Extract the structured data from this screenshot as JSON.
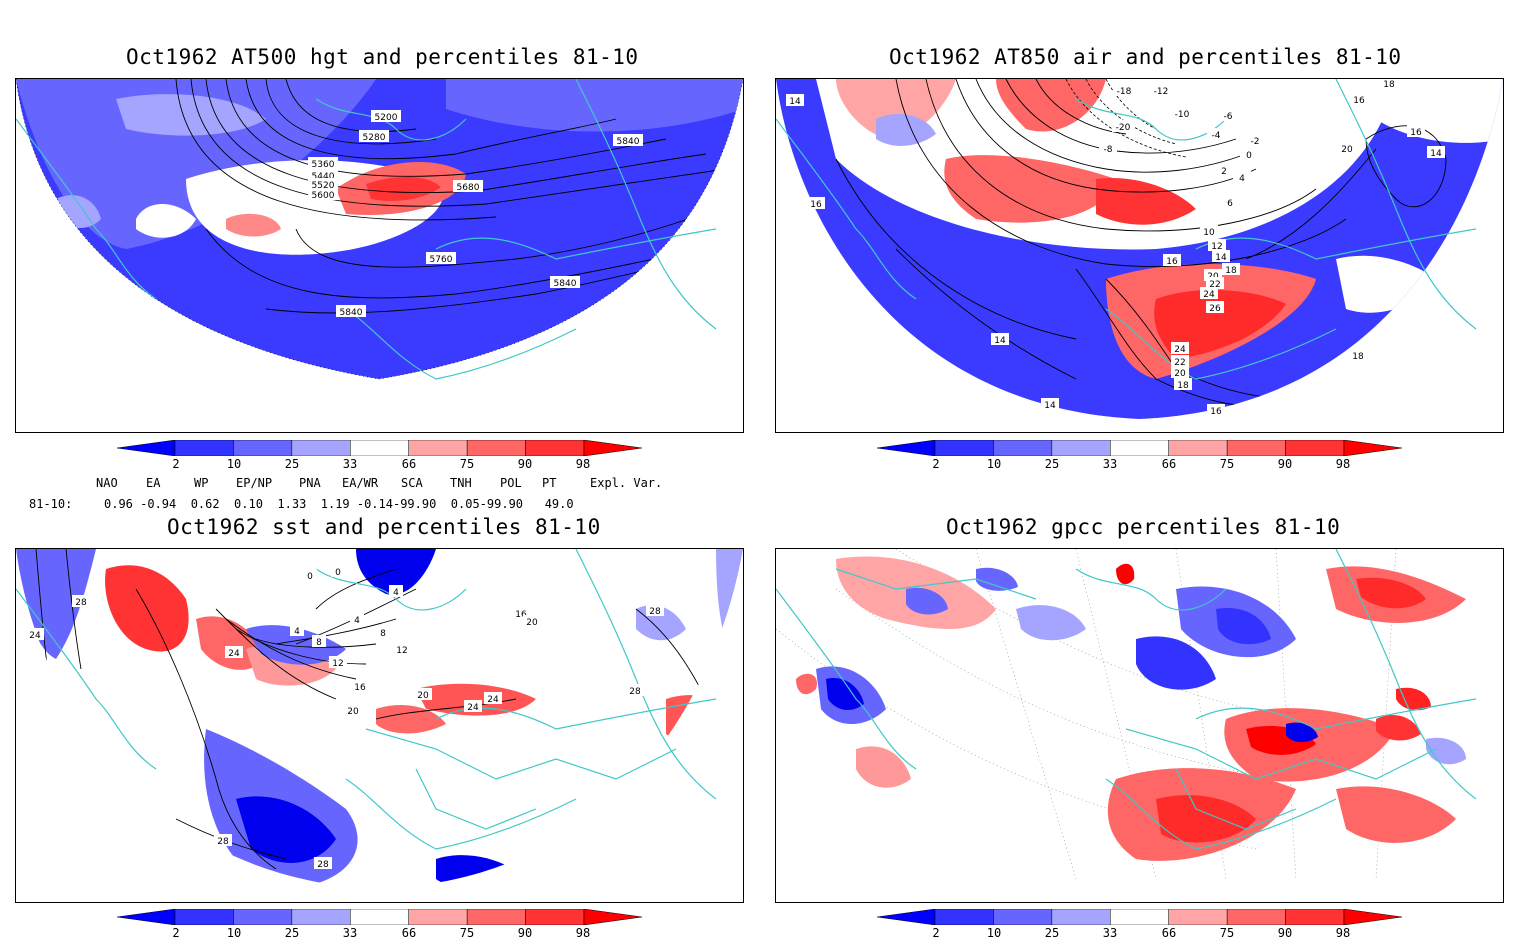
{
  "panels": {
    "hgt": {
      "title": "Oct1962 AT500 hgt and percentiles 81-10",
      "contour_labels": [
        "5200",
        "5280",
        "5360",
        "5440",
        "5520",
        "5600",
        "5680",
        "5760",
        "5840",
        "5840",
        "5840",
        "5840"
      ]
    },
    "air": {
      "title": "Oct1962 AT850 air and percentiles 81-10",
      "contour_labels": [
        "14",
        "16",
        "-18",
        "-12",
        "-10",
        "-6",
        "-20",
        "-4",
        "-8",
        "-2",
        "0",
        "2",
        "4",
        "6",
        "10",
        "12",
        "14",
        "16",
        "18",
        "20",
        "22",
        "24",
        "26",
        "24",
        "22",
        "20",
        "18",
        "16",
        "14",
        "14",
        "16",
        "18",
        "18",
        "16",
        "14",
        "20"
      ]
    },
    "sst": {
      "title": "Oct1962 sst and percentiles 81-10",
      "contour_labels": [
        "28",
        "24",
        "24",
        "0",
        "0",
        "4",
        "8",
        "4",
        "4",
        "8",
        "12",
        "12",
        "16",
        "20",
        "20",
        "24",
        "24",
        "28",
        "28",
        "28",
        "28",
        "16",
        "20"
      ]
    },
    "gpcc": {
      "title": "Oct1962 gpcc percentiles 81-10"
    }
  },
  "colorbar": {
    "labels": [
      "2",
      "10",
      "25",
      "33",
      "66",
      "75",
      "90",
      "98"
    ],
    "colors": [
      "#0000ff",
      "#3333ff",
      "#6666ff",
      "#a5a5ff",
      "#ffffff",
      "#ffa5a5",
      "#ff6666",
      "#ff3333",
      "#ff0000"
    ]
  },
  "indices": {
    "headers": [
      "NAO",
      "EA",
      "WP",
      "EP/NP",
      "PNA",
      "EA/WR",
      "SCA",
      "TNH",
      "POL",
      "PT",
      "Expl. Var."
    ],
    "row_label": "81-10:",
    "values_text": "0.96 -0.94  0.62  0.10  1.33  1.19 -0.14-99.90  0.05-99.90   49.0"
  }
}
